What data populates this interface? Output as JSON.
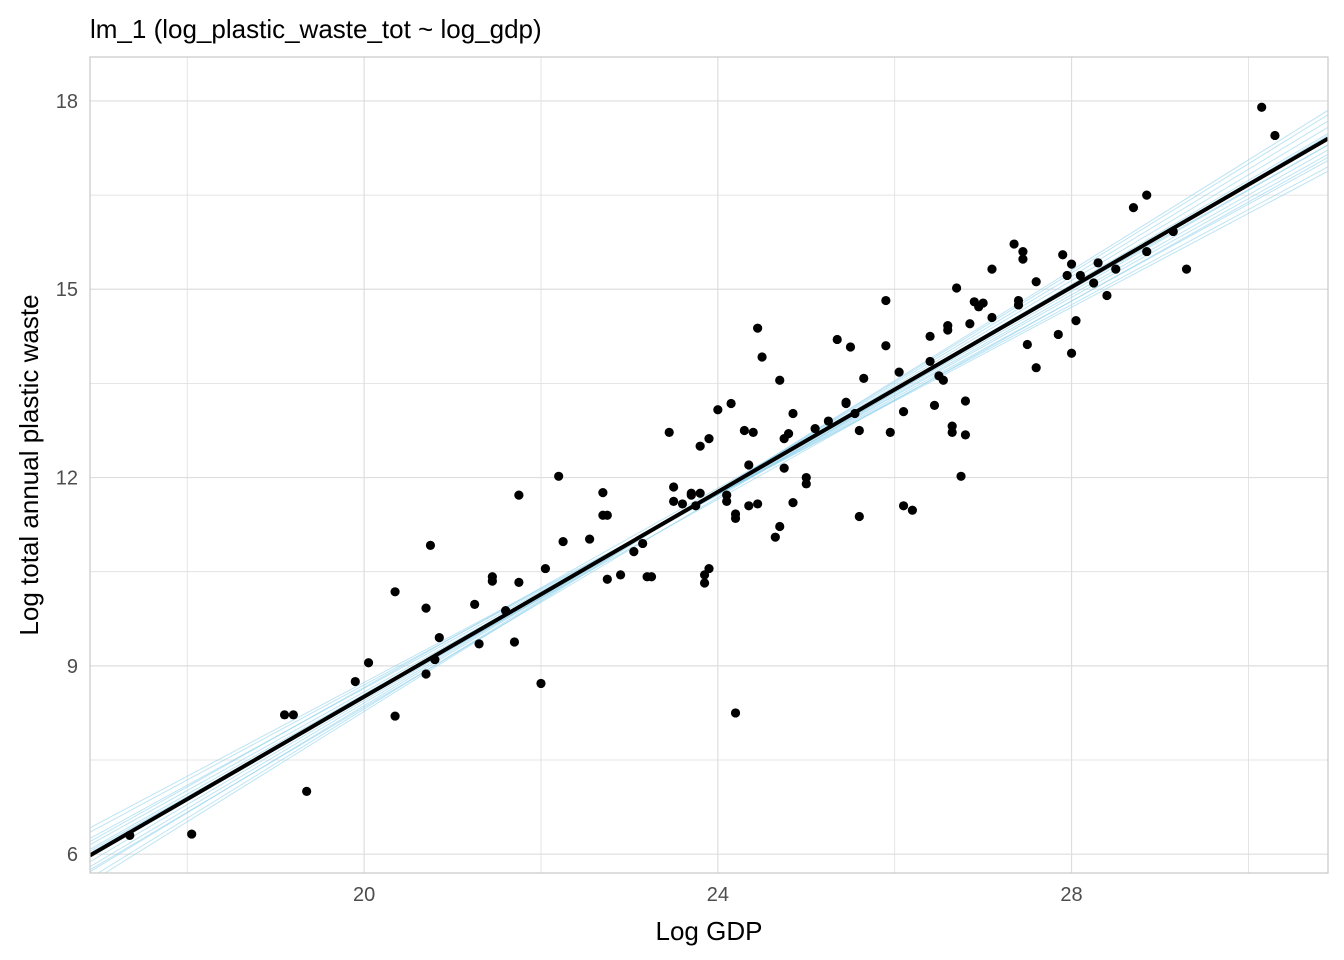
{
  "chart_data": {
    "type": "scatter",
    "title": "lm_1 (log_plastic_waste_tot ~ log_gdp)",
    "xlabel": "Log GDP",
    "ylabel": "Log total annual plastic waste",
    "xlim": [
      16.9,
      30.9
    ],
    "ylim": [
      5.7,
      18.7
    ],
    "x_ticks": [
      20,
      24,
      28
    ],
    "y_ticks": [
      6,
      9,
      12,
      15,
      18
    ],
    "grid": true,
    "legend": "none",
    "colors": {
      "points": "#000000",
      "fit_line": "#000000",
      "ensemble_lines": "#87ceeb",
      "grid": "#dedede",
      "panel_border": "#c8c8c8",
      "tick_label": "#4d4d4d"
    },
    "fit_line": {
      "x": [
        16.9,
        30.9
      ],
      "y": [
        5.98,
        17.4
      ]
    },
    "ensemble_lines": [
      {
        "x": [
          16.9,
          30.9
        ],
        "y": [
          6.35,
          16.95
        ]
      },
      {
        "x": [
          16.9,
          30.9
        ],
        "y": [
          6.25,
          17.05
        ]
      },
      {
        "x": [
          16.9,
          30.9
        ],
        "y": [
          6.15,
          17.15
        ]
      },
      {
        "x": [
          16.9,
          30.9
        ],
        "y": [
          6.08,
          17.22
        ]
      },
      {
        "x": [
          16.9,
          30.9
        ],
        "y": [
          6.02,
          17.3
        ]
      },
      {
        "x": [
          16.9,
          30.9
        ],
        "y": [
          5.95,
          17.38
        ]
      },
      {
        "x": [
          16.9,
          30.9
        ],
        "y": [
          5.88,
          17.48
        ]
      },
      {
        "x": [
          16.9,
          30.9
        ],
        "y": [
          5.8,
          17.58
        ]
      },
      {
        "x": [
          16.9,
          30.9
        ],
        "y": [
          5.72,
          17.68
        ]
      },
      {
        "x": [
          16.9,
          30.9
        ],
        "y": [
          5.62,
          17.78
        ]
      },
      {
        "x": [
          16.9,
          30.9
        ],
        "y": [
          5.55,
          17.85
        ]
      },
      {
        "x": [
          16.9,
          30.9
        ],
        "y": [
          6.42,
          16.88
        ]
      },
      {
        "x": [
          16.9,
          30.9
        ],
        "y": [
          6.2,
          17.3
        ]
      },
      {
        "x": [
          16.9,
          30.9
        ],
        "y": [
          5.75,
          17.45
        ]
      },
      {
        "x": [
          16.9,
          30.9
        ],
        "y": [
          6.05,
          17.1
        ]
      }
    ],
    "points": [
      {
        "x": 17.35,
        "y": 6.3
      },
      {
        "x": 18.05,
        "y": 6.32
      },
      {
        "x": 19.1,
        "y": 8.22
      },
      {
        "x": 19.2,
        "y": 8.22
      },
      {
        "x": 19.35,
        "y": 7.0
      },
      {
        "x": 19.9,
        "y": 8.75
      },
      {
        "x": 20.05,
        "y": 9.05
      },
      {
        "x": 20.35,
        "y": 8.2
      },
      {
        "x": 20.35,
        "y": 10.18
      },
      {
        "x": 20.7,
        "y": 9.92
      },
      {
        "x": 20.75,
        "y": 10.92
      },
      {
        "x": 20.7,
        "y": 8.87
      },
      {
        "x": 20.8,
        "y": 9.1
      },
      {
        "x": 20.85,
        "y": 9.45
      },
      {
        "x": 21.25,
        "y": 9.98
      },
      {
        "x": 21.3,
        "y": 9.35
      },
      {
        "x": 21.45,
        "y": 10.35
      },
      {
        "x": 21.45,
        "y": 10.42
      },
      {
        "x": 21.6,
        "y": 9.88
      },
      {
        "x": 21.7,
        "y": 9.38
      },
      {
        "x": 21.75,
        "y": 11.72
      },
      {
        "x": 21.75,
        "y": 10.33
      },
      {
        "x": 22.0,
        "y": 8.72
      },
      {
        "x": 22.05,
        "y": 10.55
      },
      {
        "x": 22.2,
        "y": 12.02
      },
      {
        "x": 22.25,
        "y": 10.98
      },
      {
        "x": 22.55,
        "y": 11.02
      },
      {
        "x": 22.7,
        "y": 11.4
      },
      {
        "x": 22.7,
        "y": 11.76
      },
      {
        "x": 22.75,
        "y": 10.38
      },
      {
        "x": 22.75,
        "y": 11.4
      },
      {
        "x": 22.9,
        "y": 10.45
      },
      {
        "x": 23.05,
        "y": 10.82
      },
      {
        "x": 23.15,
        "y": 10.95
      },
      {
        "x": 23.2,
        "y": 10.42
      },
      {
        "x": 23.25,
        "y": 10.42
      },
      {
        "x": 23.45,
        "y": 12.72
      },
      {
        "x": 23.5,
        "y": 11.62
      },
      {
        "x": 23.5,
        "y": 11.85
      },
      {
        "x": 23.6,
        "y": 11.58
      },
      {
        "x": 23.7,
        "y": 11.72
      },
      {
        "x": 23.7,
        "y": 11.75
      },
      {
        "x": 23.75,
        "y": 11.55
      },
      {
        "x": 23.8,
        "y": 12.5
      },
      {
        "x": 23.8,
        "y": 11.75
      },
      {
        "x": 23.85,
        "y": 10.45
      },
      {
        "x": 23.85,
        "y": 10.32
      },
      {
        "x": 23.9,
        "y": 12.62
      },
      {
        "x": 23.9,
        "y": 10.55
      },
      {
        "x": 24.0,
        "y": 13.08
      },
      {
        "x": 24.1,
        "y": 11.72
      },
      {
        "x": 24.1,
        "y": 11.62
      },
      {
        "x": 24.15,
        "y": 13.18
      },
      {
        "x": 24.2,
        "y": 11.42
      },
      {
        "x": 24.2,
        "y": 11.35
      },
      {
        "x": 24.2,
        "y": 8.25
      },
      {
        "x": 24.3,
        "y": 12.75
      },
      {
        "x": 24.35,
        "y": 12.2
      },
      {
        "x": 24.35,
        "y": 11.55
      },
      {
        "x": 24.4,
        "y": 12.72
      },
      {
        "x": 24.45,
        "y": 11.58
      },
      {
        "x": 24.45,
        "y": 14.38
      },
      {
        "x": 24.5,
        "y": 13.92
      },
      {
        "x": 24.65,
        "y": 11.05
      },
      {
        "x": 24.7,
        "y": 11.22
      },
      {
        "x": 24.7,
        "y": 13.55
      },
      {
        "x": 24.75,
        "y": 12.15
      },
      {
        "x": 24.75,
        "y": 12.62
      },
      {
        "x": 24.8,
        "y": 12.7
      },
      {
        "x": 24.85,
        "y": 11.6
      },
      {
        "x": 24.85,
        "y": 13.02
      },
      {
        "x": 25.0,
        "y": 11.9
      },
      {
        "x": 25.0,
        "y": 12.0
      },
      {
        "x": 25.1,
        "y": 12.78
      },
      {
        "x": 25.25,
        "y": 12.9
      },
      {
        "x": 25.35,
        "y": 14.2
      },
      {
        "x": 25.45,
        "y": 13.2
      },
      {
        "x": 25.45,
        "y": 13.18
      },
      {
        "x": 25.5,
        "y": 14.08
      },
      {
        "x": 25.55,
        "y": 13.02
      },
      {
        "x": 25.6,
        "y": 11.38
      },
      {
        "x": 25.6,
        "y": 12.75
      },
      {
        "x": 25.65,
        "y": 13.58
      },
      {
        "x": 25.9,
        "y": 14.82
      },
      {
        "x": 25.9,
        "y": 14.1
      },
      {
        "x": 25.95,
        "y": 12.72
      },
      {
        "x": 26.05,
        "y": 13.68
      },
      {
        "x": 26.1,
        "y": 13.05
      },
      {
        "x": 26.1,
        "y": 11.55
      },
      {
        "x": 26.2,
        "y": 11.48
      },
      {
        "x": 26.4,
        "y": 14.25
      },
      {
        "x": 26.4,
        "y": 13.85
      },
      {
        "x": 26.45,
        "y": 13.15
      },
      {
        "x": 26.5,
        "y": 13.62
      },
      {
        "x": 26.55,
        "y": 13.55
      },
      {
        "x": 26.6,
        "y": 14.35
      },
      {
        "x": 26.6,
        "y": 14.42
      },
      {
        "x": 26.65,
        "y": 12.82
      },
      {
        "x": 26.65,
        "y": 12.72
      },
      {
        "x": 26.7,
        "y": 15.02
      },
      {
        "x": 26.75,
        "y": 12.02
      },
      {
        "x": 26.8,
        "y": 13.22
      },
      {
        "x": 26.8,
        "y": 12.68
      },
      {
        "x": 26.85,
        "y": 14.45
      },
      {
        "x": 26.9,
        "y": 14.8
      },
      {
        "x": 26.95,
        "y": 14.72
      },
      {
        "x": 27.0,
        "y": 14.78
      },
      {
        "x": 27.1,
        "y": 15.32
      },
      {
        "x": 27.1,
        "y": 14.55
      },
      {
        "x": 27.35,
        "y": 15.72
      },
      {
        "x": 27.4,
        "y": 14.82
      },
      {
        "x": 27.4,
        "y": 14.75
      },
      {
        "x": 27.45,
        "y": 15.6
      },
      {
        "x": 27.45,
        "y": 15.48
      },
      {
        "x": 27.5,
        "y": 14.12
      },
      {
        "x": 27.6,
        "y": 15.12
      },
      {
        "x": 27.6,
        "y": 13.75
      },
      {
        "x": 27.85,
        "y": 14.28
      },
      {
        "x": 27.9,
        "y": 15.55
      },
      {
        "x": 27.95,
        "y": 15.22
      },
      {
        "x": 28.0,
        "y": 13.98
      },
      {
        "x": 28.0,
        "y": 15.4
      },
      {
        "x": 28.05,
        "y": 14.5
      },
      {
        "x": 28.1,
        "y": 15.22
      },
      {
        "x": 28.3,
        "y": 15.42
      },
      {
        "x": 28.4,
        "y": 14.9
      },
      {
        "x": 28.5,
        "y": 15.32
      },
      {
        "x": 28.7,
        "y": 16.3
      },
      {
        "x": 28.85,
        "y": 16.5
      },
      {
        "x": 28.85,
        "y": 15.6
      },
      {
        "x": 29.3,
        "y": 15.32
      },
      {
        "x": 30.15,
        "y": 17.9
      },
      {
        "x": 30.3,
        "y": 17.45
      },
      {
        "x": 28.25,
        "y": 15.1
      },
      {
        "x": 29.15,
        "y": 15.92
      }
    ]
  }
}
